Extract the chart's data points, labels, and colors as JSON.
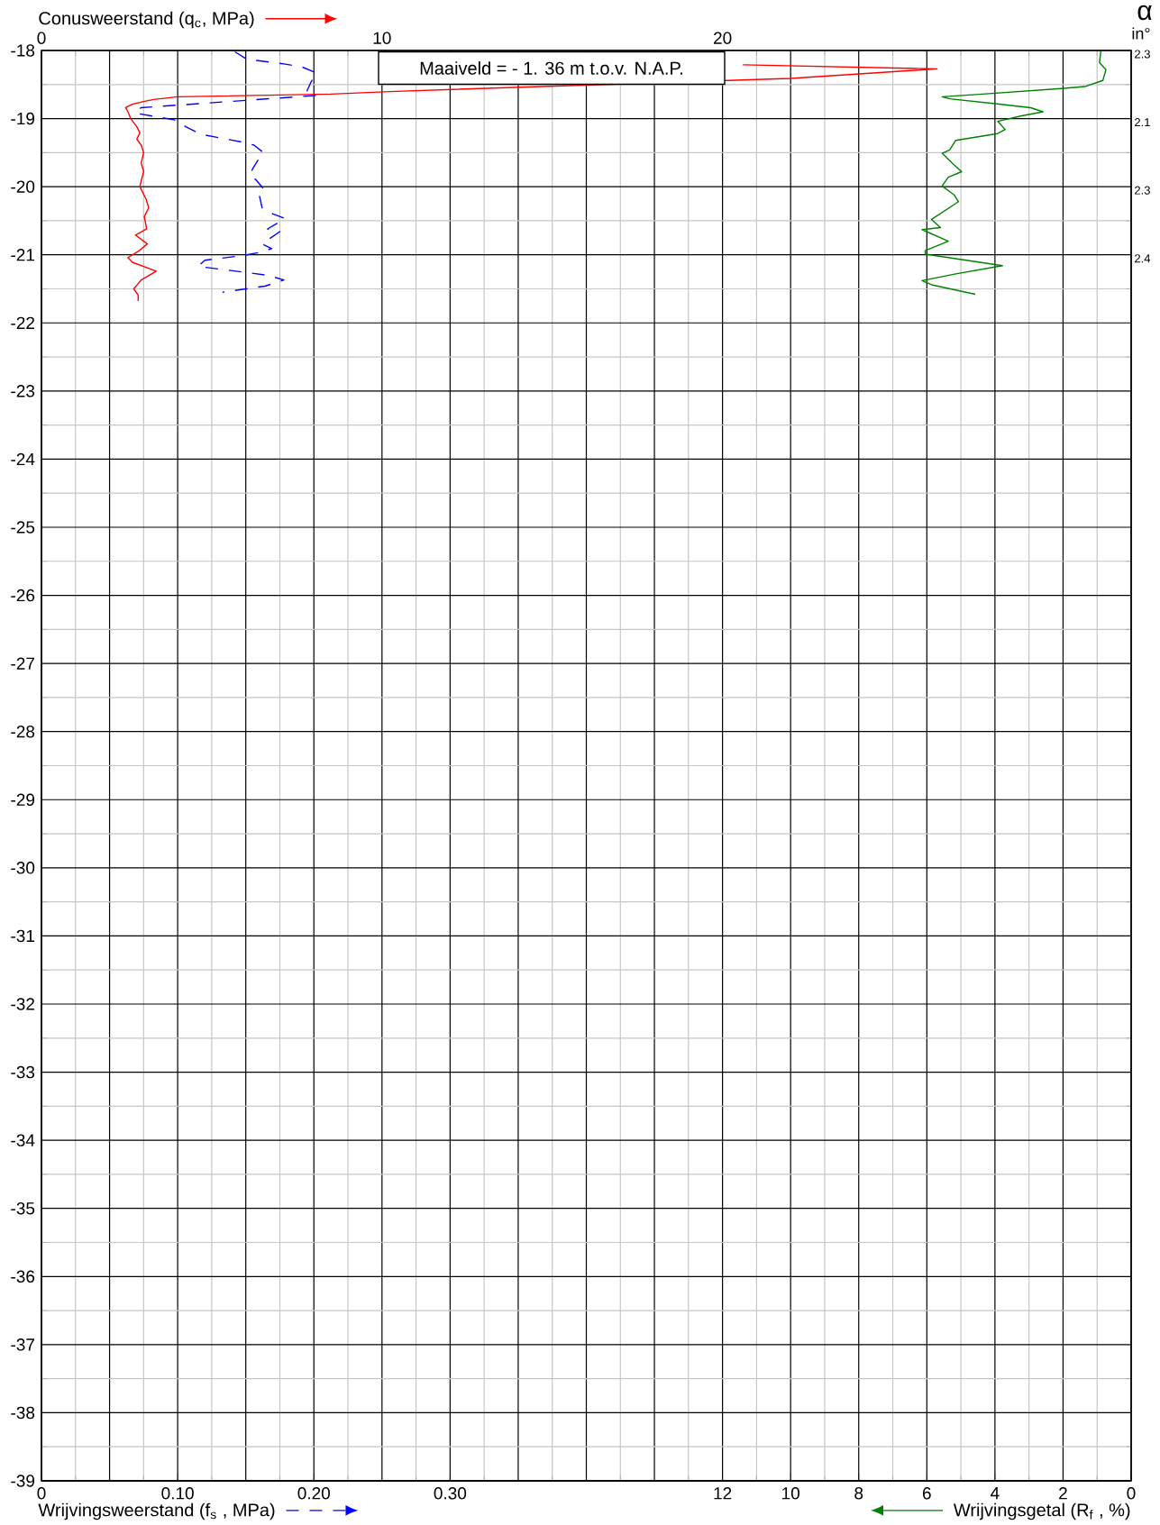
{
  "chart_data": [
    {
      "type": "line",
      "xlabel": "Conusweerstand (q$_{c}$, MPa)",
      "ylim": [
        -39,
        -18
      ],
      "yticks": [
        -18,
        -19,
        -20,
        -21,
        -22,
        -23,
        -24,
        -25,
        -26,
        -27,
        -28,
        -29,
        -30,
        -31,
        -32,
        -33,
        -34,
        -35,
        -36,
        -37,
        -38,
        -39
      ],
      "xlim": [
        0,
        32
      ],
      "xticks": [
        0,
        {
          "value": 2,
          "label": null
        },
        {
          "value": 4,
          "label": null
        },
        {
          "value": 6,
          "label": null
        },
        {
          "value": 8,
          "label": null
        },
        10,
        {
          "value": 12,
          "label": null
        },
        {
          "value": 14,
          "label": null
        },
        {
          "value": 16,
          "label": null
        },
        {
          "value": 18,
          "label": null
        },
        20,
        {
          "value": 22,
          "label": null
        },
        {
          "value": 24,
          "label": null
        },
        {
          "value": 26,
          "label": null
        },
        {
          "value": 28,
          "label": null
        },
        {
          "value": 30,
          "label": null
        },
        {
          "value": 32,
          "label": null
        }
      ],
      "grid": true,
      "series": [
        {
          "color": "#ff0000",
          "line_style": "solid",
          "x": [
            20.6,
            26.3,
            22.0,
            10.4,
            8.5,
            4.0,
            3.3,
            3.0,
            2.67,
            2.47,
            2.54,
            2.62,
            2.8,
            2.89,
            2.8,
            2.93,
            3.0,
            2.93,
            3.0,
            2.93,
            2.89,
            3.07,
            3.15,
            3.02,
            3.09,
            2.76,
            3.11,
            2.84,
            2.54,
            2.67,
            3.37,
            2.93,
            2.71,
            2.84,
            2.84
          ],
          "values": [
            -18.21,
            -18.27,
            -18.41,
            -18.6,
            -18.64,
            -18.68,
            -18.72,
            -18.75,
            -18.79,
            -18.84,
            -18.9,
            -19.0,
            -19.12,
            -19.21,
            -19.3,
            -19.39,
            -19.5,
            -19.65,
            -19.78,
            -19.91,
            -20.0,
            -20.18,
            -20.31,
            -20.44,
            -20.62,
            -20.71,
            -20.84,
            -20.95,
            -21.04,
            -21.11,
            -21.24,
            -21.37,
            -21.5,
            -21.59,
            -21.68
          ]
        }
      ],
      "annotations": [
        "Maaiveld = - 1. 36 m t.o.v. N.A.P.",
        "α",
        "in°",
        "2.3",
        "2.1",
        "2.3",
        "2.4"
      ]
    },
    {
      "type": "line",
      "xlabel": "Wrijvingsweerstand (f$_{s}$ , MPa)",
      "ylim": [
        -39,
        -18
      ],
      "xlim": [
        0,
        0.8
      ],
      "xticks": [
        0,
        {
          "value": 0.1,
          "label": "0.10"
        },
        {
          "value": 0.2,
          "label": "0.20"
        },
        {
          "value": 0.3,
          "label": "0.30"
        }
      ],
      "tick_labels": "x",
      "series": [
        {
          "color": "#0000ff",
          "line_style": "dashed",
          "x": [
            0.142,
            0.151,
            0.179,
            0.191,
            0.202,
            0.198,
            0.195,
            0.202,
            0.073,
            0.069,
            0.098,
            0.106,
            0.117,
            0.146,
            0.156,
            0.163,
            0.159,
            0.155,
            0.153,
            0.157,
            0.164,
            0.16,
            0.162,
            0.17,
            0.179,
            0.166,
            0.175,
            0.162,
            0.169,
            0.159,
            0.148,
            0.12,
            0.115,
            0.166,
            0.178,
            0.164,
            0.133
          ],
          "values": [
            -18.02,
            -18.13,
            -18.2,
            -18.24,
            -18.33,
            -18.46,
            -18.59,
            -18.66,
            -18.84,
            -18.92,
            -19.02,
            -19.12,
            -19.23,
            -19.34,
            -19.39,
            -19.5,
            -19.61,
            -19.74,
            -19.83,
            -19.89,
            -20.05,
            -20.13,
            -20.31,
            -20.4,
            -20.47,
            -20.62,
            -20.66,
            -20.84,
            -20.91,
            -20.97,
            -21.01,
            -21.08,
            -21.17,
            -21.3,
            -21.37,
            -21.46,
            -21.55
          ]
        }
      ]
    },
    {
      "type": "line",
      "xlabel": "Wrijvingsgetal (R$_{f}$ , %)",
      "ylim": [
        -39,
        -18
      ],
      "xlim": [
        32,
        0
      ],
      "xticks": [
        12,
        10,
        8,
        6,
        4,
        2,
        0
      ],
      "tick_labels": "x",
      "series": [
        {
          "color": "#008000",
          "line_style": "solid",
          "x": [
            0.89,
            0.93,
            0.74,
            0.83,
            1.36,
            2.06,
            4.36,
            5.55,
            5.33,
            4.0,
            2.95,
            2.59,
            3.21,
            3.92,
            3.7,
            3.92,
            5.15,
            5.33,
            5.55,
            5.24,
            4.98,
            5.37,
            5.55,
            5.2,
            5.07,
            5.86,
            5.6,
            6.14,
            5.37,
            6.05,
            6.04,
            3.78,
            5.15,
            6.14,
            5.86,
            4.58
          ],
          "values": [
            -18.01,
            -18.18,
            -18.28,
            -18.44,
            -18.53,
            -18.56,
            -18.64,
            -18.68,
            -18.71,
            -18.78,
            -18.84,
            -18.9,
            -18.96,
            -19.04,
            -19.16,
            -19.22,
            -19.32,
            -19.46,
            -19.51,
            -19.66,
            -19.78,
            -19.86,
            -19.99,
            -20.12,
            -20.22,
            -20.48,
            -20.6,
            -20.63,
            -20.8,
            -20.94,
            -20.99,
            -21.16,
            -21.28,
            -21.38,
            -21.44,
            -21.58
          ]
        }
      ]
    }
  ]
}
